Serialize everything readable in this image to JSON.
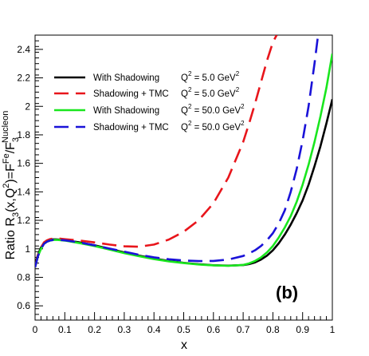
{
  "chart_data": {
    "type": "line",
    "title": "",
    "xlabel": "x",
    "ylabel_parts": {
      "prefix": "Ratio R",
      "sub3a": "3",
      "mid": "(x,Q",
      "sup2": "2",
      "mid2": ")=F",
      "supFe": "Fe",
      "slash": "/F",
      "sub3b": "3",
      "supNucleon": "Nucleon"
    },
    "xlim": [
      0,
      1
    ],
    "ylim": [
      0.5,
      2.5
    ],
    "xticks": [
      0,
      0.1,
      0.2,
      0.3,
      0.4,
      0.5,
      0.6,
      0.7,
      0.8,
      0.9,
      1
    ],
    "xtick_labels": [
      "0",
      "0.1",
      "0.2",
      "0.3",
      "0.4",
      "0.5",
      "0.6",
      "0.7",
      "0.8",
      "0.9",
      "1"
    ],
    "yticks": [
      0.6,
      0.8,
      1,
      1.2,
      1.4,
      1.6,
      1.8,
      2,
      2.2,
      2.4
    ],
    "ytick_labels": [
      "0.6",
      "0.8",
      "1",
      "1.2",
      "1.4",
      "1.6",
      "1.8",
      "2",
      "2.2",
      "2.4"
    ],
    "grid": false,
    "legend_placement": "top-left",
    "panel_label": "(b)",
    "series": [
      {
        "name": "With Shadowing",
        "q2_label": "Q",
        "q2_value": " = 5.0 GeV",
        "color": "#000000",
        "dash": "solid",
        "x": [
          0.0,
          0.01,
          0.02,
          0.03,
          0.04,
          0.05,
          0.06,
          0.07,
          0.08,
          0.1,
          0.15,
          0.2,
          0.25,
          0.3,
          0.35,
          0.4,
          0.45,
          0.5,
          0.55,
          0.6,
          0.65,
          0.7,
          0.72,
          0.74,
          0.76,
          0.78,
          0.8,
          0.82,
          0.84,
          0.86,
          0.88,
          0.9,
          0.92,
          0.94,
          0.96,
          0.98,
          1.0
        ],
        "y": [
          0.89,
          0.96,
          1.01,
          1.04,
          1.055,
          1.063,
          1.066,
          1.066,
          1.065,
          1.061,
          1.045,
          1.025,
          1.0,
          0.975,
          0.952,
          0.932,
          0.915,
          0.902,
          0.892,
          0.885,
          0.882,
          0.886,
          0.893,
          0.905,
          0.925,
          0.952,
          0.99,
          1.04,
          1.1,
          1.17,
          1.25,
          1.34,
          1.45,
          1.58,
          1.72,
          1.88,
          2.05
        ]
      },
      {
        "name": "Shadowing + TMC",
        "q2_label": "Q",
        "q2_value": " = 5.0 GeV",
        "color": "#e8151b",
        "dash": "long",
        "x": [
          0.0,
          0.01,
          0.02,
          0.03,
          0.04,
          0.05,
          0.06,
          0.07,
          0.08,
          0.1,
          0.15,
          0.2,
          0.25,
          0.3,
          0.35,
          0.4,
          0.45,
          0.5,
          0.55,
          0.6,
          0.65,
          0.7,
          0.72,
          0.74,
          0.76,
          0.78,
          0.8,
          0.8126
        ],
        "y": [
          0.87,
          0.96,
          1.01,
          1.045,
          1.06,
          1.068,
          1.072,
          1.073,
          1.072,
          1.068,
          1.058,
          1.045,
          1.03,
          1.018,
          1.015,
          1.03,
          1.065,
          1.12,
          1.2,
          1.32,
          1.5,
          1.75,
          1.88,
          2.02,
          2.17,
          2.32,
          2.45,
          2.5
        ]
      },
      {
        "name": "With Shadowing",
        "q2_label": "Q",
        "q2_value": " = 50.0 GeV",
        "color": "#19e61e",
        "dash": "solid",
        "x": [
          0.0,
          0.01,
          0.02,
          0.03,
          0.04,
          0.05,
          0.06,
          0.07,
          0.08,
          0.1,
          0.15,
          0.2,
          0.25,
          0.3,
          0.35,
          0.4,
          0.45,
          0.5,
          0.55,
          0.6,
          0.65,
          0.7,
          0.72,
          0.74,
          0.76,
          0.78,
          0.8,
          0.82,
          0.84,
          0.86,
          0.88,
          0.9,
          0.92,
          0.94,
          0.96,
          0.98,
          1.0
        ],
        "y": [
          0.87,
          0.95,
          1.0,
          1.035,
          1.05,
          1.058,
          1.062,
          1.063,
          1.062,
          1.058,
          1.04,
          1.02,
          0.995,
          0.97,
          0.948,
          0.928,
          0.912,
          0.9,
          0.89,
          0.884,
          0.881,
          0.887,
          0.898,
          0.915,
          0.94,
          0.975,
          1.02,
          1.08,
          1.15,
          1.23,
          1.33,
          1.45,
          1.59,
          1.75,
          1.93,
          2.13,
          2.37
        ]
      },
      {
        "name": "Shadowing + TMC",
        "q2_label": "Q",
        "q2_value": " = 50.0 GeV",
        "color": "#1a12d8",
        "dash": "long",
        "x": [
          0.0,
          0.01,
          0.02,
          0.03,
          0.04,
          0.05,
          0.06,
          0.07,
          0.08,
          0.1,
          0.15,
          0.2,
          0.25,
          0.3,
          0.35,
          0.4,
          0.45,
          0.5,
          0.55,
          0.6,
          0.65,
          0.7,
          0.72,
          0.74,
          0.76,
          0.78,
          0.8,
          0.82,
          0.84,
          0.86,
          0.88,
          0.9,
          0.92,
          0.94,
          0.952
        ],
        "y": [
          0.87,
          0.95,
          1.0,
          1.035,
          1.05,
          1.058,
          1.062,
          1.064,
          1.063,
          1.06,
          1.045,
          1.025,
          1.002,
          0.98,
          0.958,
          0.94,
          0.927,
          0.918,
          0.914,
          0.915,
          0.925,
          0.95,
          0.968,
          0.99,
          1.02,
          1.06,
          1.11,
          1.18,
          1.27,
          1.4,
          1.56,
          1.76,
          2.0,
          2.3,
          2.5
        ]
      }
    ]
  }
}
